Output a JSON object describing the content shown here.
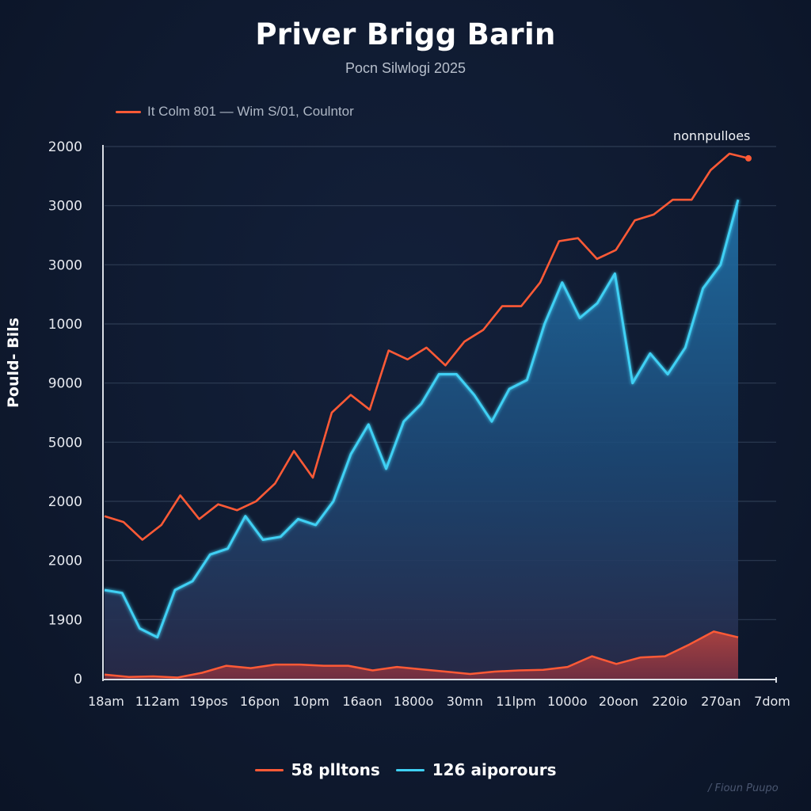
{
  "chart_data": {
    "type": "line",
    "title": "Priver Brigg Barin",
    "subtitle": "Pocn Silwlogi 2025",
    "top_legend": "It Colm 801 — Wim S/01, Coulntor",
    "annotation": "nonnpulloes",
    "ylabel": "Pould- Bils",
    "xlabel": "",
    "y_tick_labels": [
      "0",
      "1900",
      "2000",
      "2000",
      "5000",
      "9000",
      "1000",
      "3000",
      "3000",
      "2000"
    ],
    "y_scale_note": "tick labels as printed; values below are in gridline units (0 = bottom gridline, 9 = top gridline)",
    "ylim": [
      0,
      9
    ],
    "x_tick_labels": [
      "18am",
      "112am",
      "19pos",
      "16pon",
      "10pm",
      "16aon",
      "1800o",
      "30mn",
      "11lpm",
      "1000o",
      "20oon",
      "220io",
      "270an",
      "7dom"
    ],
    "grid": true,
    "legend_position": "bottom",
    "series": [
      {
        "name": "58 plltons",
        "color": "#ff5a36",
        "role": "upper-line",
        "values": [
          2.75,
          2.65,
          2.35,
          2.6,
          3.1,
          2.7,
          2.95,
          2.85,
          3.0,
          3.3,
          3.85,
          3.4,
          4.5,
          4.8,
          4.55,
          5.55,
          5.4,
          5.6,
          5.3,
          5.7,
          5.9,
          6.3,
          6.3,
          6.7,
          7.4,
          7.45,
          7.1,
          7.25,
          7.75,
          7.85,
          8.1,
          8.1,
          8.6,
          8.88,
          8.8
        ]
      },
      {
        "name": "126 aiporours",
        "color": "#3fd0f4",
        "role": "area",
        "values": [
          1.5,
          1.45,
          0.85,
          0.7,
          1.5,
          1.65,
          2.1,
          2.2,
          2.75,
          2.35,
          2.4,
          2.7,
          2.6,
          3.0,
          3.8,
          4.3,
          3.55,
          4.35,
          4.65,
          5.15,
          5.15,
          4.8,
          4.35,
          4.9,
          5.05,
          6.0,
          6.7,
          6.1,
          6.35,
          6.85,
          5.0,
          5.5,
          5.15,
          5.6,
          6.6,
          7.0,
          8.1
        ]
      },
      {
        "name": "baseline",
        "color": "#ff5a36",
        "role": "bottom-area",
        "values": [
          0.07,
          0.03,
          0.04,
          0.02,
          0.1,
          0.22,
          0.18,
          0.24,
          0.24,
          0.22,
          0.22,
          0.14,
          0.2,
          0.16,
          0.12,
          0.08,
          0.12,
          0.14,
          0.15,
          0.2,
          0.38,
          0.25,
          0.36,
          0.38,
          0.58,
          0.8,
          0.7
        ]
      }
    ]
  },
  "legend": {
    "items": [
      {
        "label": "58 plltons",
        "color": "#ff5a36"
      },
      {
        "label": "126 aiporours",
        "color": "#3fd0f4"
      }
    ]
  },
  "credit": "/ Fioun Puupo"
}
